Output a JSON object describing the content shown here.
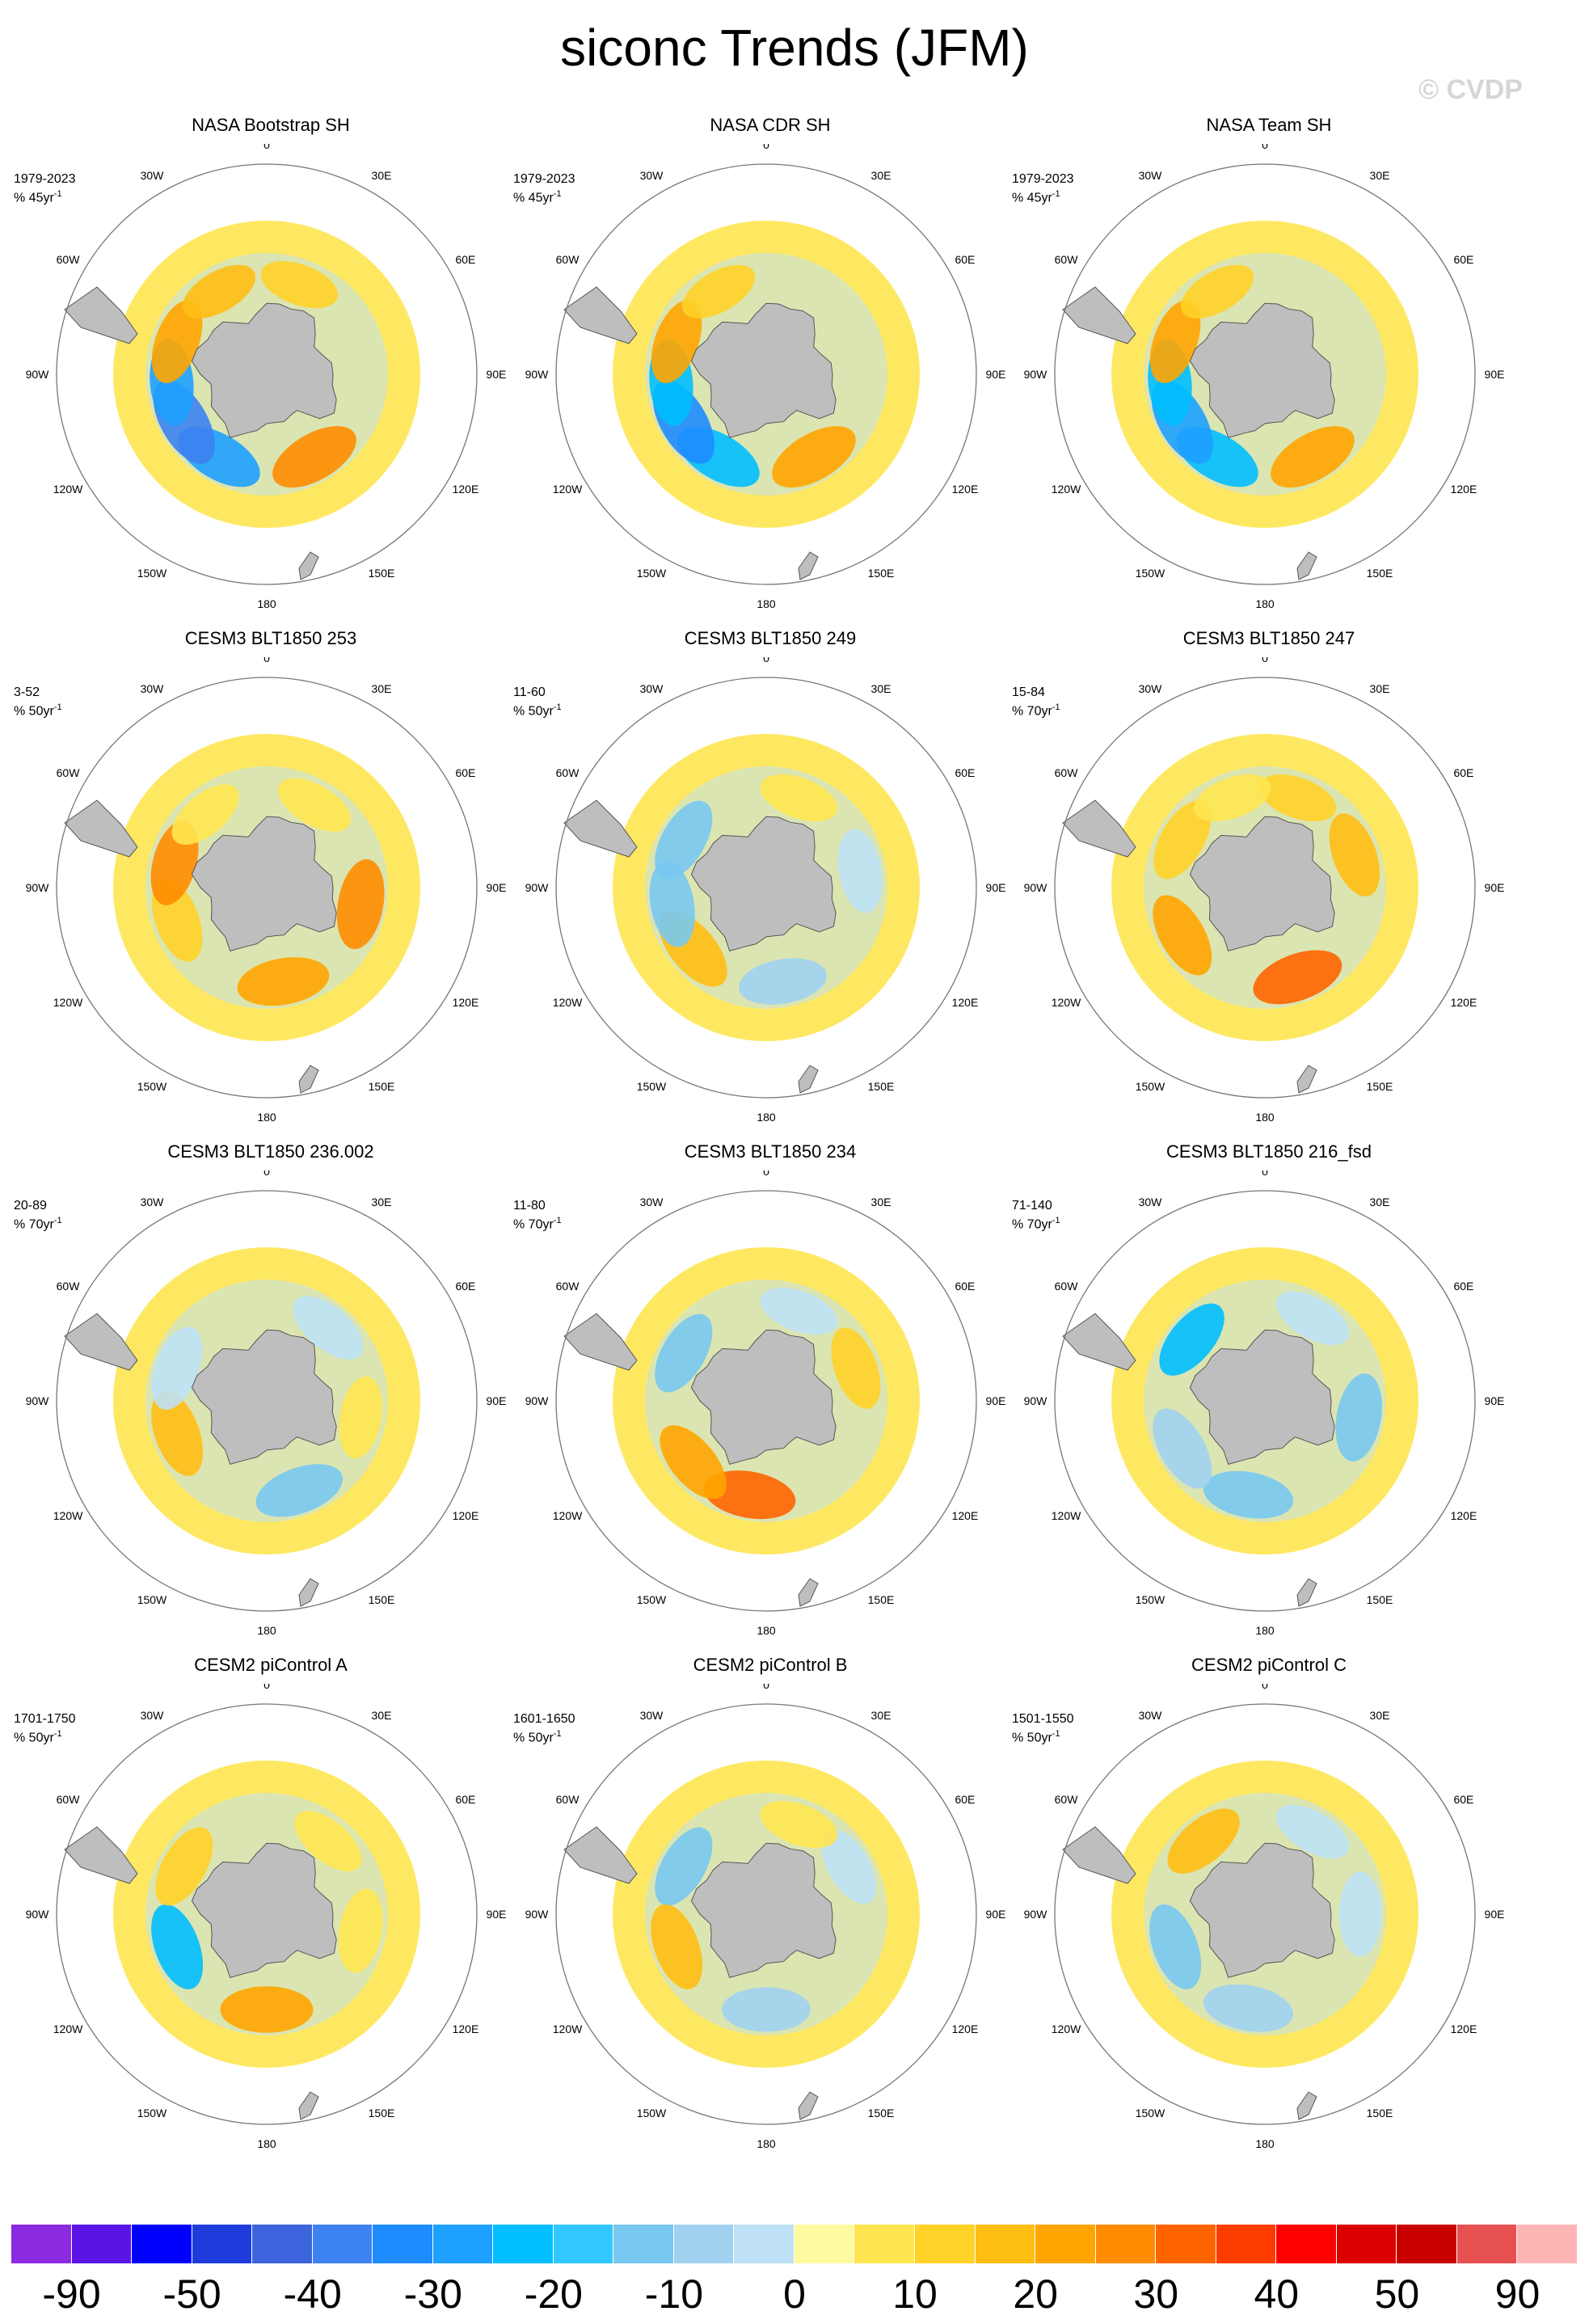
{
  "title": "siconc Trends (JFM)",
  "watermark": "© CVDP",
  "lon_labels": [
    "0",
    "30E",
    "60E",
    "90E",
    "120E",
    "150E",
    "180",
    "150W",
    "120W",
    "90W",
    "60W",
    "30W"
  ],
  "panels": [
    {
      "title": "NASA Bootstrap SH",
      "period": "1979-2023",
      "unit": "% 45yr",
      "unit_exp": "-1",
      "pattern": [
        [
          150,
          5,
          92
        ],
        [
          210,
          -6,
          90
        ],
        [
          240,
          -8,
          92
        ],
        [
          265,
          -6,
          86
        ],
        [
          290,
          4,
          86
        ],
        [
          330,
          3,
          80
        ],
        [
          20,
          2,
          80
        ]
      ]
    },
    {
      "title": "NASA CDR SH",
      "period": "1979-2023",
      "unit": "% 45yr",
      "unit_exp": "-1",
      "pattern": [
        [
          150,
          4,
          92
        ],
        [
          210,
          -5,
          90
        ],
        [
          240,
          -7,
          92
        ],
        [
          265,
          -5,
          86
        ],
        [
          290,
          4,
          86
        ],
        [
          330,
          2,
          80
        ]
      ]
    },
    {
      "title": "NASA Team SH",
      "period": "1979-2023",
      "unit": "% 45yr",
      "unit_exp": "-1",
      "pattern": [
        [
          150,
          4,
          92
        ],
        [
          210,
          -5,
          90
        ],
        [
          240,
          -6,
          92
        ],
        [
          265,
          -5,
          86
        ],
        [
          290,
          4,
          86
        ],
        [
          330,
          2,
          80
        ]
      ]
    },
    {
      "title": "CESM3 BLT1850 253",
      "period": "3-52",
      "unit": "% 50yr",
      "unit_exp": "-1",
      "pattern": [
        [
          100,
          5,
          90
        ],
        [
          170,
          4,
          92
        ],
        [
          250,
          2,
          86
        ],
        [
          285,
          5,
          86
        ],
        [
          320,
          1,
          80
        ],
        [
          30,
          1,
          80
        ]
      ]
    },
    {
      "title": "CESM3 BLT1850 249",
      "period": "11-60",
      "unit": "% 50yr",
      "unit_exp": "-1",
      "pattern": [
        [
          230,
          3,
          90
        ],
        [
          260,
          -3,
          86
        ],
        [
          300,
          -3,
          86
        ],
        [
          170,
          -2,
          88
        ],
        [
          80,
          -1,
          84
        ],
        [
          20,
          1,
          80
        ]
      ]
    },
    {
      "title": "CESM3 BLT1850 247",
      "period": "15-84",
      "unit": "% 70yr",
      "unit_exp": "-1",
      "pattern": [
        [
          160,
          6,
          92
        ],
        [
          240,
          4,
          88
        ],
        [
          300,
          2,
          86
        ],
        [
          70,
          3,
          86
        ],
        [
          20,
          2,
          80
        ],
        [
          340,
          1,
          80
        ]
      ]
    },
    {
      "title": "CESM3 BLT1850 236.002",
      "period": "20-89",
      "unit": "% 70yr",
      "unit_exp": "-1",
      "pattern": [
        [
          250,
          3,
          88
        ],
        [
          160,
          -3,
          90
        ],
        [
          290,
          -1,
          86
        ],
        [
          40,
          -1,
          84
        ],
        [
          100,
          1,
          82
        ]
      ]
    },
    {
      "title": "CESM3 BLT1850 234",
      "period": "11-80",
      "unit": "% 70yr",
      "unit_exp": "-1",
      "pattern": [
        [
          190,
          6,
          92
        ],
        [
          230,
          4,
          88
        ],
        [
          300,
          -3,
          86
        ],
        [
          70,
          2,
          84
        ],
        [
          20,
          -1,
          80
        ]
      ]
    },
    {
      "title": "CESM3 BLT1850 216_fsd",
      "period": "71-140",
      "unit": "% 70yr",
      "unit_exp": "-1",
      "pattern": [
        [
          310,
          -5,
          86
        ],
        [
          190,
          -3,
          90
        ],
        [
          100,
          -3,
          88
        ],
        [
          240,
          -2,
          88
        ],
        [
          30,
          -1,
          80
        ]
      ]
    },
    {
      "title": "CESM2 piControl A",
      "period": "1701-1750",
      "unit": "% 50yr",
      "unit_exp": "-1",
      "pattern": [
        [
          250,
          -5,
          88
        ],
        [
          180,
          4,
          92
        ],
        [
          300,
          2,
          86
        ],
        [
          40,
          1,
          80
        ],
        [
          100,
          1,
          84
        ]
      ]
    },
    {
      "title": "CESM2 piControl B",
      "period": "1601-1650",
      "unit": "% 50yr",
      "unit_exp": "-1",
      "pattern": [
        [
          300,
          -3,
          86
        ],
        [
          250,
          3,
          88
        ],
        [
          180,
          -2,
          88
        ],
        [
          60,
          -1,
          82
        ],
        [
          20,
          1,
          80
        ]
      ]
    },
    {
      "title": "CESM2 piControl C",
      "period": "1501-1550",
      "unit": "% 50yr",
      "unit_exp": "-1",
      "pattern": [
        [
          320,
          3,
          86
        ],
        [
          250,
          -3,
          88
        ],
        [
          190,
          -2,
          90
        ],
        [
          90,
          -1,
          84
        ],
        [
          30,
          -1,
          80
        ]
      ]
    }
  ],
  "colorbar": {
    "colors": [
      "#8a2be2",
      "#5a14e6",
      "#0000ff",
      "#1e3cdc",
      "#3c64dc",
      "#3c82f0",
      "#1e8cff",
      "#1ea0ff",
      "#00beff",
      "#32c8ff",
      "#78c8f0",
      "#a0d2f0",
      "#bee1f5",
      "#fffaa0",
      "#ffe650",
      "#ffd228",
      "#ffbe14",
      "#ffa500",
      "#ff8c00",
      "#ff6400",
      "#ff3c00",
      "#ff0000",
      "#dc0000",
      "#c80000",
      "#e65050",
      "#ffb4b4"
    ],
    "labels": [
      "-90",
      "-50",
      "-40",
      "-30",
      "-20",
      "-10",
      "0",
      "10",
      "20",
      "30",
      "40",
      "50",
      "90"
    ],
    "label_positions": [
      1,
      3,
      5,
      7,
      9,
      11,
      13,
      15,
      17,
      19,
      21,
      23,
      25
    ]
  }
}
